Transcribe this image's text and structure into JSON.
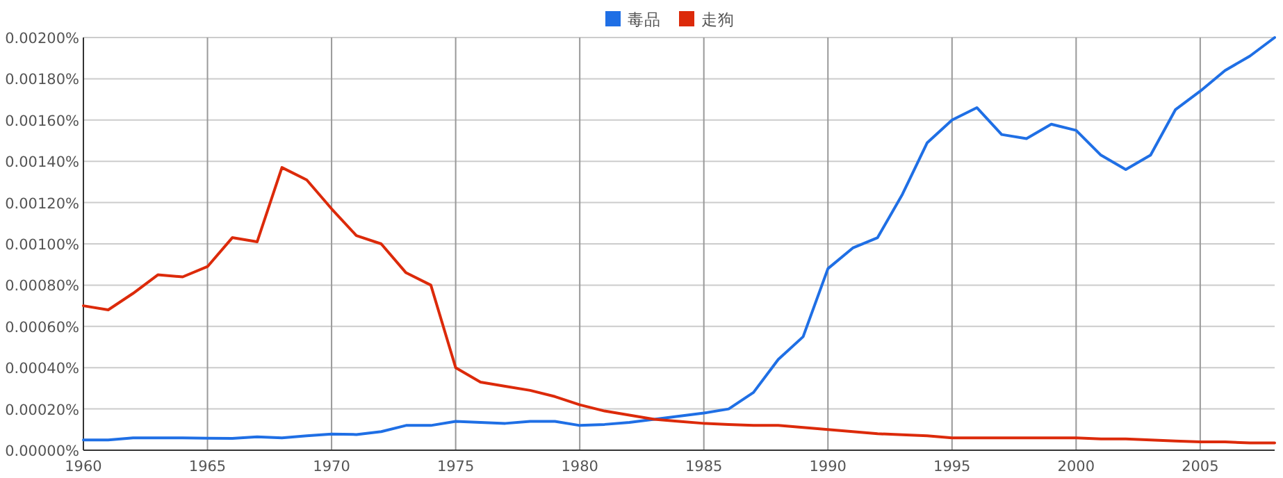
{
  "chart_data": {
    "type": "line",
    "x": [
      1960,
      1961,
      1962,
      1963,
      1964,
      1965,
      1966,
      1967,
      1968,
      1969,
      1970,
      1971,
      1972,
      1973,
      1974,
      1975,
      1976,
      1977,
      1978,
      1979,
      1980,
      1981,
      1982,
      1983,
      1984,
      1985,
      1986,
      1987,
      1988,
      1989,
      1990,
      1991,
      1992,
      1993,
      1994,
      1995,
      1996,
      1997,
      1998,
      1999,
      2000,
      2001,
      2002,
      2003,
      2004,
      2005,
      2006,
      2007,
      2008
    ],
    "series": [
      {
        "name": "毒品",
        "color": "#1f6fe5",
        "values": [
          5e-05,
          5e-05,
          6e-05,
          6e-05,
          6e-05,
          5.8e-05,
          5.7e-05,
          6.5e-05,
          6e-05,
          7e-05,
          7.8e-05,
          7.6e-05,
          9e-05,
          0.00012,
          0.00012,
          0.00014,
          0.000135,
          0.00013,
          0.00014,
          0.00014,
          0.00012,
          0.000125,
          0.000135,
          0.00015,
          0.000165,
          0.00018,
          0.0002,
          0.00028,
          0.00044,
          0.00055,
          0.00088,
          0.00098,
          0.00103,
          0.00124,
          0.00149,
          0.0016,
          0.00166,
          0.00153,
          0.00151,
          0.00158,
          0.00155,
          0.00143,
          0.00136,
          0.00143,
          0.00165,
          0.00174,
          0.00184,
          0.00191,
          0.002
        ]
      },
      {
        "name": "走狗",
        "color": "#dc2a0a",
        "values": [
          0.0007,
          0.00068,
          0.00076,
          0.00085,
          0.00084,
          0.00089,
          0.00103,
          0.00101,
          0.00137,
          0.00131,
          0.00117,
          0.00104,
          0.001,
          0.00086,
          0.0008,
          0.0004,
          0.00033,
          0.00031,
          0.00029,
          0.00026,
          0.00022,
          0.00019,
          0.00017,
          0.00015,
          0.00014,
          0.00013,
          0.000125,
          0.00012,
          0.00012,
          0.00011,
          0.0001,
          9e-05,
          8e-05,
          7.5e-05,
          7e-05,
          6e-05,
          6e-05,
          6e-05,
          6e-05,
          6e-05,
          6e-05,
          5.5e-05,
          5.5e-05,
          5e-05,
          4.5e-05,
          4e-05,
          4e-05,
          3.5e-05,
          3.5e-05
        ]
      }
    ],
    "xlim": [
      1960,
      2008
    ],
    "xticks": [
      1960,
      1965,
      1970,
      1975,
      1980,
      1985,
      1990,
      1995,
      2000,
      2005
    ],
    "ylim": [
      0,
      0.002
    ],
    "yticks": [
      {
        "value": 0,
        "label": "0.00000%"
      },
      {
        "value": 0.0002,
        "label": "0.00020%"
      },
      {
        "value": 0.0004,
        "label": "0.00040%"
      },
      {
        "value": 0.0006,
        "label": "0.00060%"
      },
      {
        "value": 0.0008,
        "label": "0.00080%"
      },
      {
        "value": 0.001,
        "label": "0.00100%"
      },
      {
        "value": 0.0012,
        "label": "0.00120%"
      },
      {
        "value": 0.0014,
        "label": "0.00140%"
      },
      {
        "value": 0.0016,
        "label": "0.00160%"
      },
      {
        "value": 0.0018,
        "label": "0.00180%"
      },
      {
        "value": 0.002,
        "label": "0.00200%"
      }
    ],
    "grid": true,
    "legend": "top"
  }
}
